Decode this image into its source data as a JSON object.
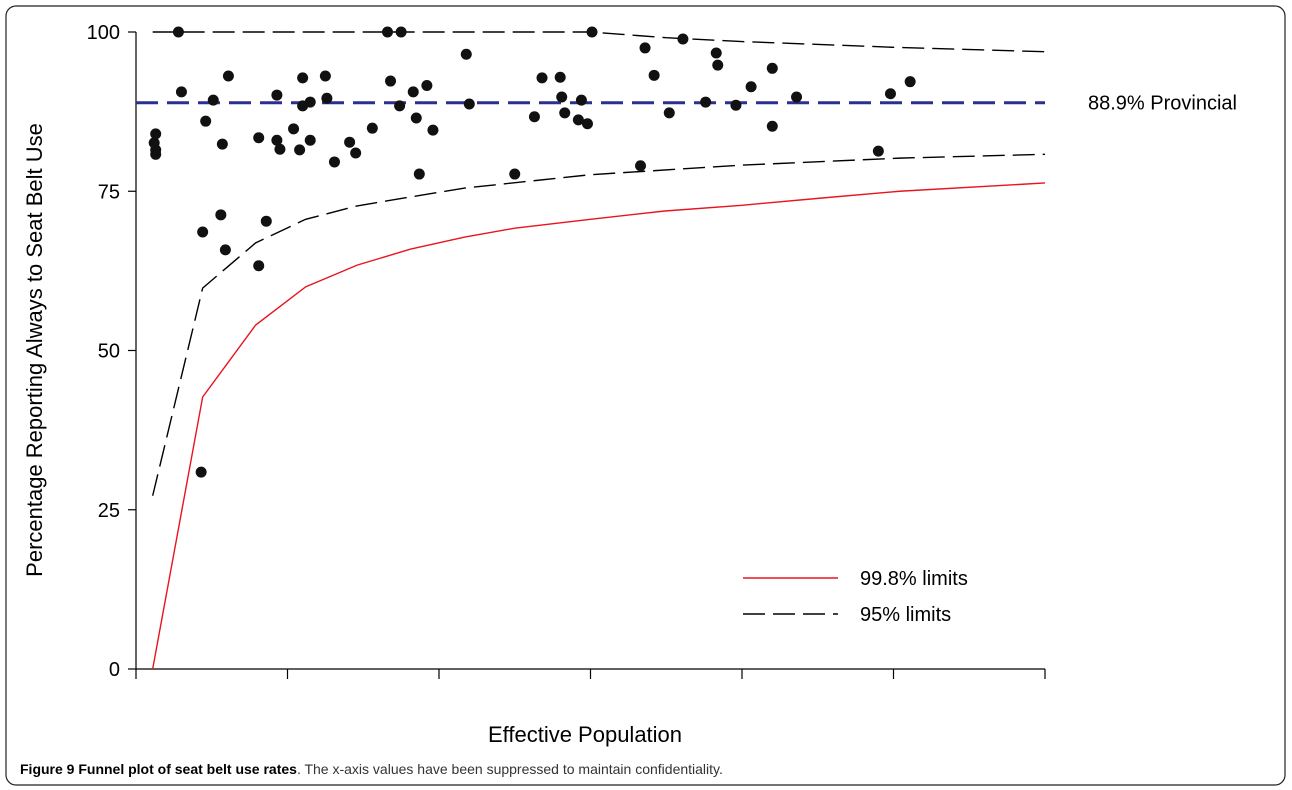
{
  "chart_data": {
    "type": "funnel",
    "y_label": "Percentage Reporting Always to Seat Belt Use",
    "x_label": "Effective Population",
    "xlim": [
      0,
      6
    ],
    "xticks": [
      0,
      1,
      2,
      3,
      4,
      5,
      6
    ],
    "ylim": [
      0,
      100
    ],
    "yticks": [
      0,
      25,
      50,
      75,
      100
    ],
    "reference_line": {
      "value": 88.9,
      "label": "88.9% Provincial",
      "color": "#2b2f8f"
    },
    "legend": "lower right",
    "series": [
      {
        "name": "99.8% limits",
        "color": "#e8141e",
        "style": "solid",
        "x": [
          0.11,
          0.44,
          0.79,
          1.12,
          1.46,
          1.81,
          2.17,
          2.5,
          3.0,
          3.49,
          4.0,
          4.51,
          5.04,
          6.0
        ],
        "y": [
          0,
          42.7,
          54.0,
          60.0,
          63.4,
          65.9,
          67.8,
          69.2,
          70.6,
          71.9,
          72.8,
          73.9,
          75.0,
          76.3
        ]
      },
      {
        "name": "95% limits",
        "color": "#000000",
        "style": "dashed",
        "x": [
          0.11,
          0.44,
          0.79,
          1.12,
          1.46,
          1.81,
          2.17,
          3.0,
          4.0,
          5.04,
          6.0
        ],
        "y": [
          27.2,
          59.8,
          66.9,
          70.6,
          72.7,
          74.1,
          75.5,
          77.6,
          79.1,
          80.2,
          80.8
        ]
      },
      {
        "color": "#000000",
        "style": "dashed",
        "x": [
          0.11,
          3.0,
          3.5,
          4.0,
          5.0,
          6.0
        ],
        "y": [
          100,
          100,
          99.1,
          98.5,
          97.6,
          96.9
        ]
      }
    ],
    "points": {
      "color": "#111111",
      "x": [
        0.12,
        0.13,
        0.13,
        0.13,
        0.28,
        0.3,
        0.44,
        0.43,
        0.46,
        0.51,
        0.56,
        0.57,
        0.59,
        0.61,
        0.81,
        0.81,
        0.86,
        0.93,
        0.93,
        0.95,
        1.04,
        1.08,
        1.1,
        1.1,
        1.15,
        1.15,
        1.25,
        1.26,
        1.31,
        1.41,
        1.45,
        1.56,
        1.66,
        1.68,
        1.75,
        1.74,
        1.83,
        1.85,
        1.87,
        1.92,
        1.96,
        2.18,
        2.2,
        2.5,
        2.63,
        2.68,
        2.8,
        2.81,
        2.83,
        2.92,
        2.94,
        2.98,
        3.01,
        3.33,
        3.36,
        3.42,
        3.52,
        3.61,
        3.76,
        3.83,
        3.84,
        3.96,
        4.06,
        4.2,
        4.2,
        4.36,
        4.9,
        4.98,
        5.11
      ],
      "y": [
        82.6,
        81.5,
        80.8,
        84.0,
        100,
        90.6,
        68.6,
        30.9,
        86.0,
        89.3,
        71.3,
        82.4,
        65.8,
        93.1,
        83.4,
        63.3,
        70.3,
        90.1,
        83.0,
        81.6,
        84.8,
        81.5,
        88.4,
        92.8,
        83.0,
        89.0,
        93.1,
        89.6,
        79.6,
        82.7,
        81.0,
        84.9,
        100,
        92.3,
        100,
        88.4,
        90.6,
        86.5,
        77.7,
        91.6,
        84.6,
        96.5,
        88.7,
        77.7,
        86.7,
        92.8,
        92.9,
        89.8,
        87.3,
        86.2,
        89.3,
        85.6,
        100,
        79.0,
        97.5,
        93.2,
        87.3,
        98.9,
        89.0,
        96.7,
        94.8,
        88.5,
        91.4,
        94.3,
        85.2,
        89.8,
        81.3,
        90.3,
        92.2
      ]
    }
  },
  "caption": {
    "title": "Figure 9 Funnel plot of seat belt use rates",
    "text": ". The x-axis values have been suppressed to maintain confidentiality."
  }
}
